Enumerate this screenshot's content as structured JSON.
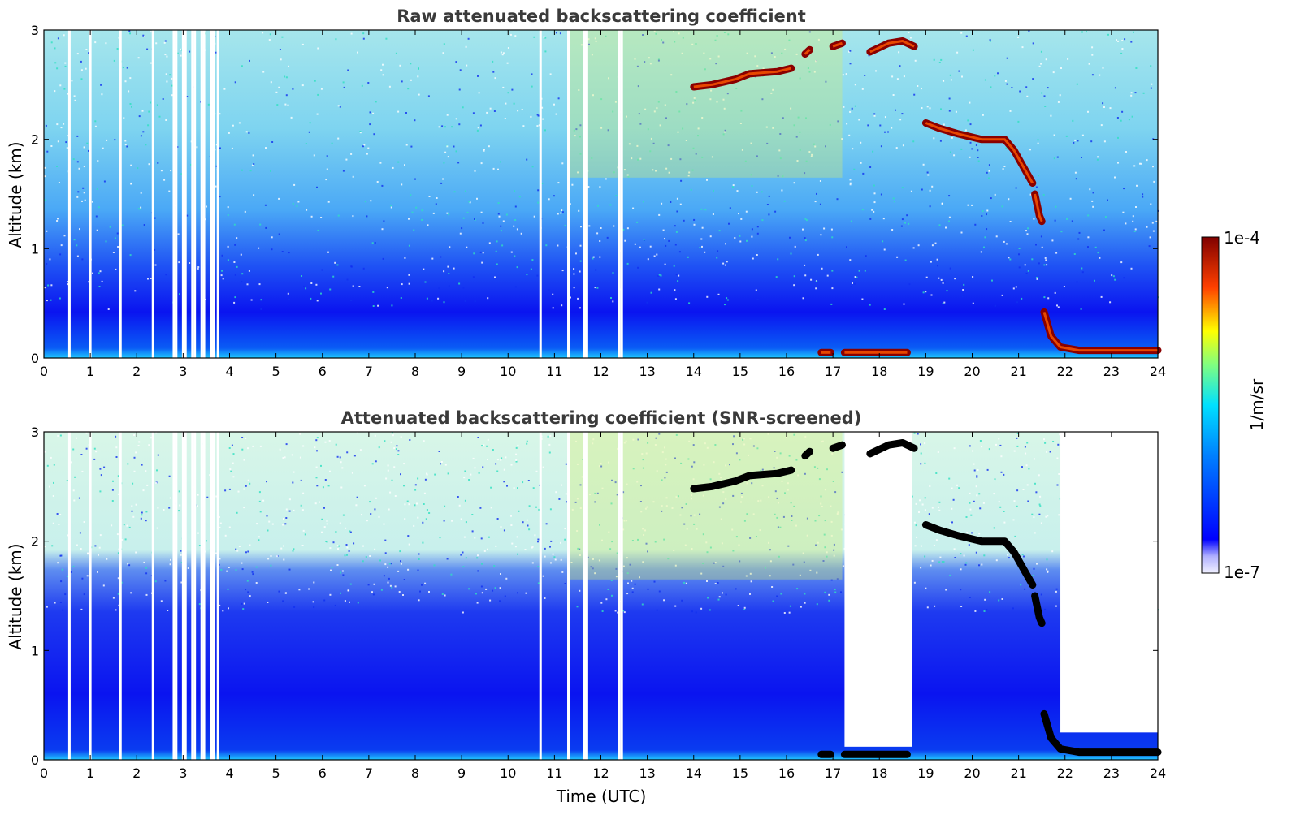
{
  "chart_data": [
    {
      "type": "heatmap",
      "title": "Raw attenuated backscattering coefficient",
      "xlabel": "",
      "ylabel": "Altitude (km)",
      "xlim": [
        0,
        24
      ],
      "ylim": [
        0,
        3
      ],
      "x_ticks": [
        "0",
        "1",
        "2",
        "3",
        "4",
        "5",
        "6",
        "7",
        "8",
        "9",
        "10",
        "11",
        "12",
        "13",
        "14",
        "15",
        "16",
        "17",
        "18",
        "19",
        "20",
        "21",
        "22",
        "23",
        "24"
      ],
      "y_ticks": [
        "0",
        "1",
        "2",
        "3"
      ],
      "gap_times": [
        0.55,
        1.0,
        1.65,
        2.35,
        2.8,
        2.85,
        3.0,
        3.05,
        3.2,
        3.25,
        3.4,
        3.45,
        3.6,
        3.65,
        3.75,
        10.7,
        11.3,
        11.65,
        11.7,
        12.4,
        12.45
      ],
      "cloud_layers": [
        {
          "name": "cloud-layer-a",
          "points": [
            [
              14.0,
              2.48
            ],
            [
              14.4,
              2.5
            ],
            [
              14.9,
              2.55
            ],
            [
              15.2,
              2.6
            ],
            [
              15.8,
              2.62
            ],
            [
              16.1,
              2.65
            ]
          ]
        },
        {
          "name": "cloud-layer-b",
          "points": [
            [
              16.4,
              2.78
            ],
            [
              16.5,
              2.82
            ]
          ]
        },
        {
          "name": "cloud-layer-c",
          "points": [
            [
              17.0,
              2.85
            ],
            [
              17.2,
              2.88
            ]
          ]
        },
        {
          "name": "cloud-layer-d",
          "points": [
            [
              17.8,
              2.8
            ],
            [
              18.2,
              2.88
            ],
            [
              18.5,
              2.9
            ],
            [
              18.75,
              2.85
            ]
          ]
        },
        {
          "name": "cloud-layer-e",
          "points": [
            [
              19.0,
              2.15
            ],
            [
              19.3,
              2.1
            ],
            [
              19.7,
              2.05
            ],
            [
              20.2,
              2.0
            ],
            [
              20.7,
              2.0
            ],
            [
              20.9,
              1.9
            ],
            [
              21.1,
              1.75
            ],
            [
              21.3,
              1.6
            ]
          ]
        },
        {
          "name": "cloud-layer-f",
          "points": [
            [
              21.35,
              1.5
            ],
            [
              21.45,
              1.3
            ],
            [
              21.5,
              1.25
            ]
          ]
        },
        {
          "name": "cloud-layer-g",
          "points": [
            [
              21.55,
              0.42
            ],
            [
              21.7,
              0.2
            ],
            [
              21.9,
              0.1
            ],
            [
              22.3,
              0.07
            ],
            [
              24.0,
              0.07
            ]
          ]
        },
        {
          "name": "cloud-layer-h",
          "points": [
            [
              17.25,
              0.05
            ],
            [
              18.6,
              0.05
            ]
          ]
        },
        {
          "name": "cloud-layer-i",
          "points": [
            [
              16.75,
              0.05
            ],
            [
              16.95,
              0.05
            ]
          ]
        }
      ]
    },
    {
      "type": "heatmap",
      "title": "Attenuated backscattering coefficient (SNR-screened)",
      "xlabel": "Time (UTC)",
      "ylabel": "Altitude (km)",
      "xlim": [
        0,
        24
      ],
      "ylim": [
        0,
        3
      ],
      "x_ticks": [
        "0",
        "1",
        "2",
        "3",
        "4",
        "5",
        "6",
        "7",
        "8",
        "9",
        "10",
        "11",
        "12",
        "13",
        "14",
        "15",
        "16",
        "17",
        "18",
        "19",
        "20",
        "21",
        "22",
        "23",
        "24"
      ],
      "y_ticks": [
        "0",
        "1",
        "2",
        "3"
      ],
      "screened_regions": [
        {
          "name": "screened-region-a",
          "x": [
            17.25,
            18.7
          ],
          "y": [
            0.12,
            3.0
          ]
        },
        {
          "name": "screened-region-b",
          "x": [
            21.9,
            24.0
          ],
          "y": [
            0.25,
            3.0
          ]
        }
      ]
    }
  ],
  "colorbar": {
    "label": "1/m/sr",
    "max_label": "1e-4",
    "min_label": "1e-7",
    "colormap": "jet",
    "scale": "log",
    "range": [
      1e-07,
      0.0001
    ]
  },
  "colors": {
    "background": "#ffffff",
    "low": "#0a14f0",
    "mid": "#30c8ff",
    "high": "#800000",
    "title": "#3a3a3a"
  }
}
